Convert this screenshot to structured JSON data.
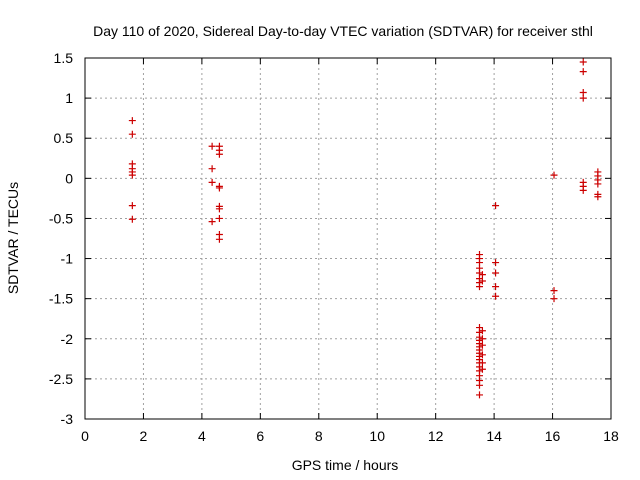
{
  "chart_data": {
    "type": "scatter",
    "title": "Day 110 of 2020, Sidereal Day-to-day VTEC variation (SDTVAR) for receiver sthl",
    "xlabel": "GPS time / hours",
    "ylabel": "SDTVAR / TECUs",
    "xlim": [
      0,
      18
    ],
    "ylim": [
      -3,
      1.5
    ],
    "x_ticks": [
      0,
      2,
      4,
      6,
      8,
      10,
      12,
      14,
      16,
      18
    ],
    "y_ticks": [
      -3,
      -2.5,
      -2,
      -1.5,
      -1,
      -0.5,
      0,
      0.5,
      1,
      1.5
    ],
    "x_tick_labels": [
      "0",
      "2",
      "4",
      "6",
      "8",
      "10",
      "12",
      "14",
      "16",
      "18"
    ],
    "y_tick_labels": [
      "-3",
      "-2.5",
      "-2",
      "-1.5",
      "-1",
      "-0.5",
      "0",
      "0.5",
      "1",
      "1.5"
    ],
    "grid": true,
    "legend": "none",
    "marker": "+",
    "color": "#cc0000",
    "series": [
      {
        "points": [
          [
            1.62,
            0.72
          ],
          [
            1.62,
            0.55
          ],
          [
            1.62,
            0.18
          ],
          [
            1.62,
            0.12
          ],
          [
            1.62,
            0.08
          ],
          [
            1.62,
            0.04
          ],
          [
            1.62,
            -0.34
          ],
          [
            1.62,
            -0.51
          ],
          [
            4.35,
            0.4
          ],
          [
            4.35,
            0.12
          ],
          [
            4.35,
            -0.05
          ],
          [
            4.35,
            -0.54
          ],
          [
            4.6,
            0.4
          ],
          [
            4.6,
            0.35
          ],
          [
            4.6,
            0.3
          ],
          [
            4.6,
            -0.1
          ],
          [
            4.6,
            -0.12
          ],
          [
            4.6,
            -0.35
          ],
          [
            4.6,
            -0.38
          ],
          [
            4.6,
            -0.5
          ],
          [
            4.6,
            -0.7
          ],
          [
            4.6,
            -0.76
          ],
          [
            13.5,
            -0.95
          ],
          [
            13.5,
            -1.0
          ],
          [
            13.5,
            -1.05
          ],
          [
            13.5,
            -1.12
          ],
          [
            13.5,
            -1.18
          ],
          [
            13.5,
            -1.25
          ],
          [
            13.5,
            -1.3
          ],
          [
            13.5,
            -1.35
          ],
          [
            13.5,
            -1.86
          ],
          [
            13.5,
            -1.92
          ],
          [
            13.5,
            -1.98
          ],
          [
            13.5,
            -2.02
          ],
          [
            13.5,
            -2.06
          ],
          [
            13.5,
            -2.1
          ],
          [
            13.5,
            -2.14
          ],
          [
            13.5,
            -2.18
          ],
          [
            13.5,
            -2.22
          ],
          [
            13.5,
            -2.26
          ],
          [
            13.5,
            -2.3
          ],
          [
            13.5,
            -2.35
          ],
          [
            13.5,
            -2.4
          ],
          [
            13.5,
            -2.46
          ],
          [
            13.5,
            -2.52
          ],
          [
            13.5,
            -2.58
          ],
          [
            13.5,
            -2.7
          ],
          [
            13.6,
            -1.2
          ],
          [
            13.6,
            -1.28
          ],
          [
            13.6,
            -1.9
          ],
          [
            13.6,
            -2.0
          ],
          [
            13.6,
            -2.08
          ],
          [
            13.6,
            -2.2
          ],
          [
            13.6,
            -2.3
          ],
          [
            13.6,
            -2.38
          ],
          [
            14.05,
            -0.34
          ],
          [
            14.05,
            -1.05
          ],
          [
            14.05,
            -1.18
          ],
          [
            14.05,
            -1.35
          ],
          [
            14.05,
            -1.47
          ],
          [
            16.05,
            0.04
          ],
          [
            16.05,
            -1.4
          ],
          [
            16.05,
            -1.5
          ],
          [
            17.05,
            1.45
          ],
          [
            17.05,
            1.33
          ],
          [
            17.05,
            1.07
          ],
          [
            17.05,
            1.0
          ],
          [
            17.05,
            -0.05
          ],
          [
            17.05,
            -0.1
          ],
          [
            17.05,
            -0.15
          ],
          [
            17.55,
            0.08
          ],
          [
            17.55,
            0.03
          ],
          [
            17.55,
            -0.02
          ],
          [
            17.55,
            -0.07
          ],
          [
            17.55,
            -0.2
          ],
          [
            17.55,
            -0.23
          ]
        ]
      }
    ]
  }
}
